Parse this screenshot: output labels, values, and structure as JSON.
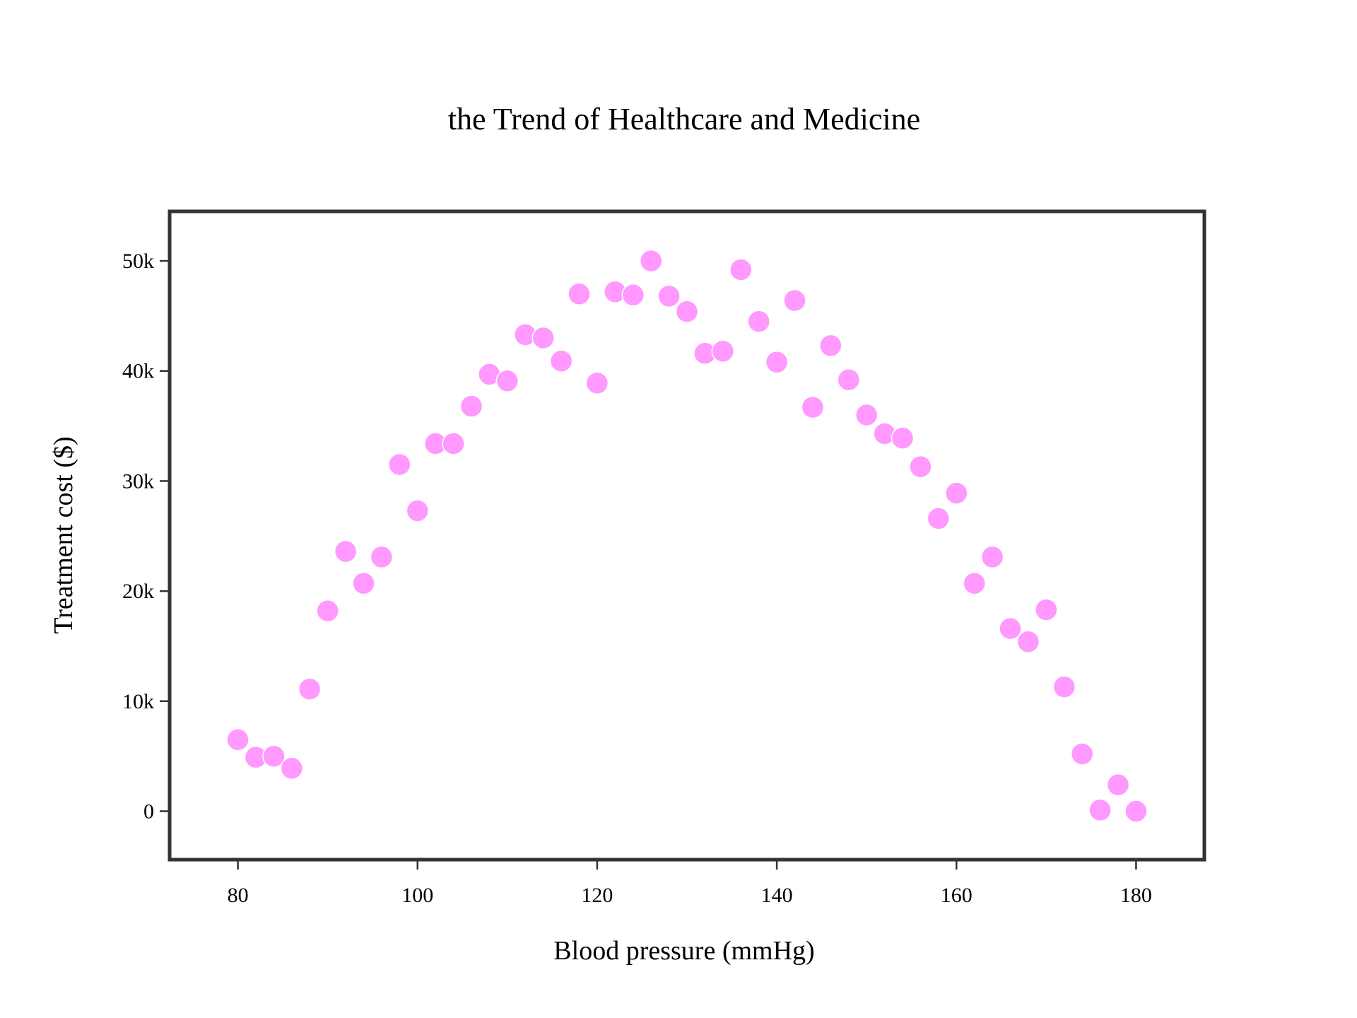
{
  "chart_data": {
    "type": "scatter",
    "title": "the Trend of Healthcare and Medicine",
    "xlabel": "Blood pressure (mmHg)",
    "ylabel": "Treatment cost ($)",
    "xlim": [
      72.4,
      187.6
    ],
    "ylim": [
      -4400,
      54500
    ],
    "xticks": [
      80,
      100,
      120,
      140,
      160,
      180
    ],
    "xtick_labels": [
      "80",
      "100",
      "120",
      "140",
      "160",
      "180"
    ],
    "yticks": [
      0,
      10000,
      20000,
      30000,
      40000,
      50000
    ],
    "ytick_labels": [
      "0",
      "10k",
      "20k",
      "30k",
      "40k",
      "50k"
    ],
    "grid": false,
    "marker_color": "#ff99ff",
    "marker_edge_color": "#ffffff",
    "frame_color": "#333333",
    "x": [
      80,
      82,
      84,
      86,
      88,
      90,
      92,
      94,
      96,
      98,
      100,
      102,
      104,
      106,
      108,
      110,
      112,
      114,
      116,
      118,
      120,
      122,
      124,
      126,
      128,
      130,
      132,
      134,
      136,
      138,
      140,
      142,
      144,
      146,
      148,
      150,
      152,
      154,
      156,
      158,
      160,
      162,
      164,
      166,
      168,
      170,
      172,
      174,
      176,
      178,
      180
    ],
    "y": [
      6500,
      4900,
      5000,
      3900,
      11100,
      18200,
      23600,
      20700,
      23100,
      31500,
      27300,
      33400,
      33400,
      36800,
      39700,
      39100,
      43300,
      43000,
      40900,
      47000,
      38900,
      47200,
      46900,
      50000,
      46800,
      45400,
      41600,
      41800,
      49200,
      44500,
      40800,
      46400,
      36700,
      42300,
      39200,
      36000,
      34300,
      33900,
      31300,
      26600,
      28900,
      20700,
      23100,
      16600,
      15400,
      18300,
      11300,
      5200,
      100,
      2400,
      0
    ]
  }
}
